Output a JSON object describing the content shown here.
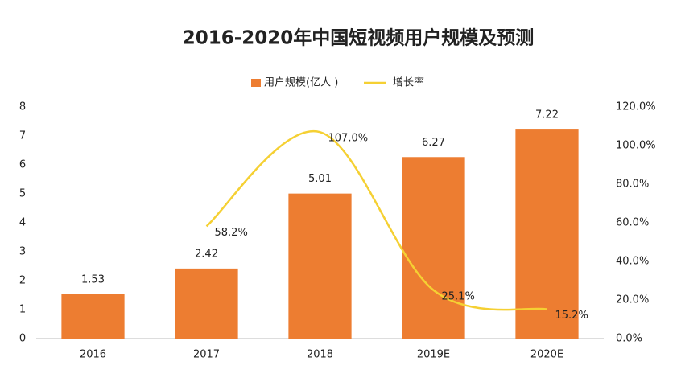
{
  "chart_data": {
    "type": "bar",
    "title": "2016-2020年中国短视频用户规模及预测",
    "categories": [
      "2016",
      "2017",
      "2018",
      "2019E",
      "2020E"
    ],
    "series": [
      {
        "name": "用户规模(亿人 )",
        "type": "bar",
        "color": "#ed7d31",
        "values": [
          1.53,
          2.42,
          5.01,
          6.27,
          7.22
        ]
      },
      {
        "name": "增长率",
        "type": "line",
        "axis": "y2",
        "color": "#f5d033",
        "values": [
          null,
          58.2,
          107.0,
          25.1,
          15.2
        ],
        "value_labels": [
          null,
          "58.2%",
          "107.0%",
          "25.1%",
          "15.2%"
        ]
      }
    ],
    "ylim": [
      0,
      8
    ],
    "yticks": [
      0,
      1,
      2,
      3,
      4,
      5,
      6,
      7,
      8
    ],
    "y2lim": [
      0,
      120
    ],
    "y2ticks": [
      {
        "value": 0,
        "label": "0.0%"
      },
      {
        "value": 20,
        "label": "20.0%"
      },
      {
        "value": 40,
        "label": "40.0%"
      },
      {
        "value": 60,
        "label": "60.0%"
      },
      {
        "value": 80,
        "label": "80.0%"
      },
      {
        "value": 100,
        "label": "100.0%"
      },
      {
        "value": 120,
        "label": "120.0%"
      }
    ],
    "legend": "top",
    "grid": false
  }
}
